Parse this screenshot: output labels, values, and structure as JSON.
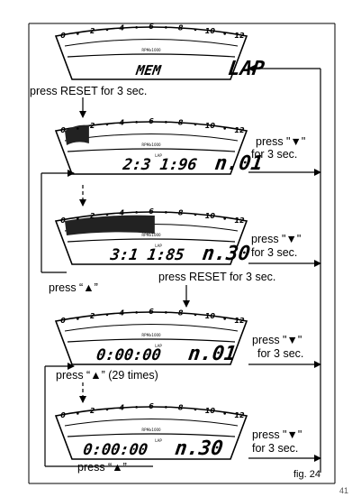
{
  "figure_label": "fig. 24",
  "page_number": "41",
  "rpm_unit": "RPMx1000",
  "lap_tag": "LAP",
  "tach_scale": [
    "0",
    "2",
    "4",
    "6",
    "8",
    "10",
    "12"
  ],
  "displays": [
    {
      "id": "mem",
      "left": "MEM",
      "right": "LAP",
      "fill": 0
    },
    {
      "id": "lap1",
      "left": "2:3 1:96",
      "right": "n.01",
      "fill": 0.14
    },
    {
      "id": "lap30",
      "left": "3:1 1:85",
      "right": "n.30",
      "fill": 0.52
    },
    {
      "id": "reset1",
      "left": "0:00:00",
      "right": "n.01",
      "fill": 0
    },
    {
      "id": "reset30",
      "left": "0:00:00",
      "right": "n.30",
      "fill": 0
    }
  ],
  "instructions": {
    "reset_1": "press RESET for 3 sec.",
    "down_1a": "press \"▼\"",
    "down_1b": "for 3 sec.",
    "down_2a": "press \"▼\"",
    "down_2b": "for 3 sec.",
    "up_1": "press “▲”",
    "reset_2": "press RESET for 3 sec.",
    "down_3a": "press \"▼\"",
    "down_3b": "for 3 sec.",
    "up_29": "press “▲” (29 times)",
    "down_4a": "press \"▼\"",
    "down_4b": "for 3 sec.",
    "up_2": "press “▲”"
  }
}
